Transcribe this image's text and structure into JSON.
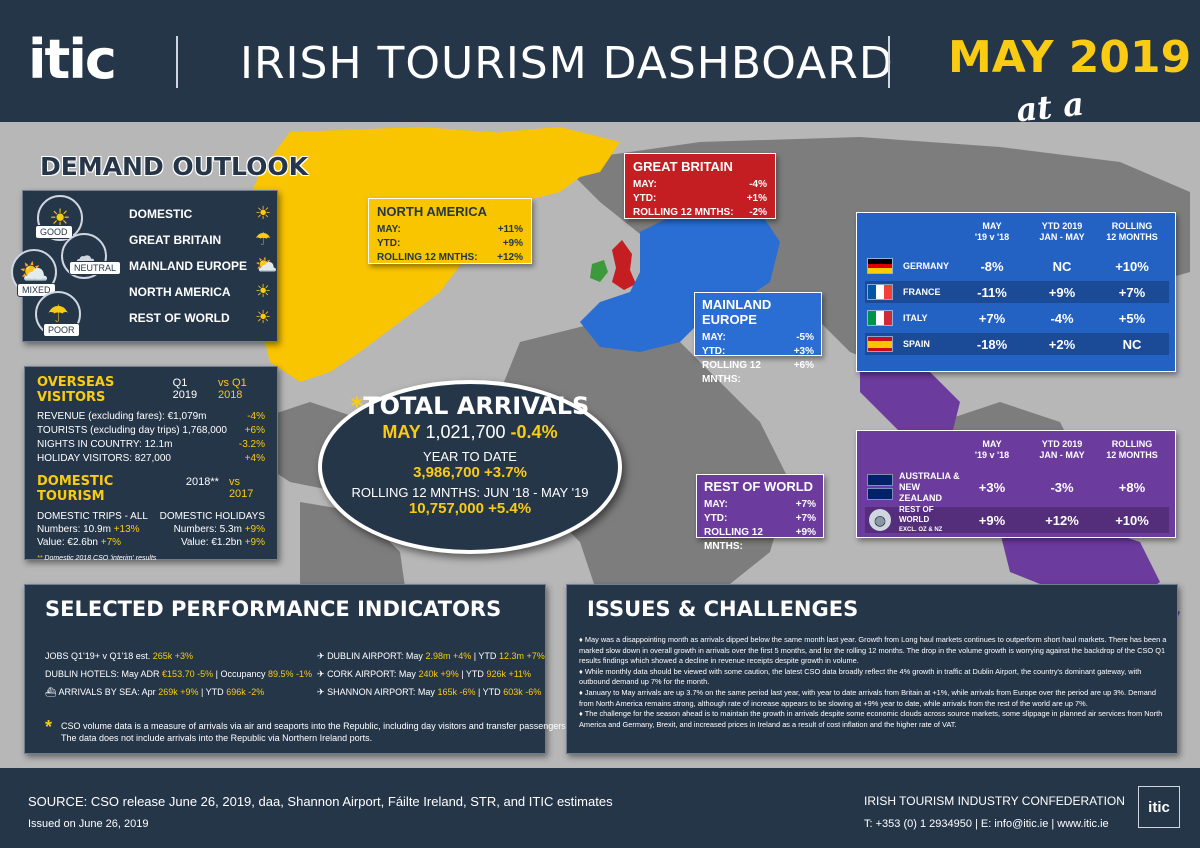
{
  "header": {
    "logo": "itic",
    "title": "IRISH TOURISM DASHBOARD",
    "month": "MAY 2019",
    "tagline": "at a glance!"
  },
  "demand_outlook": {
    "title": "DEMAND OUTLOOK",
    "legend": [
      "GOOD",
      "NEUTRAL",
      "MIXED",
      "POOR"
    ],
    "markets": [
      {
        "name": "DOMESTIC",
        "icon": "sun-icon"
      },
      {
        "name": "GREAT BRITAIN",
        "icon": "cloud-rain-icon"
      },
      {
        "name": "MAINLAND EUROPE",
        "icon": "sun-cloud-icon"
      },
      {
        "name": "NORTH AMERICA",
        "icon": "sun-icon"
      },
      {
        "name": "REST OF WORLD",
        "icon": "sun-icon"
      }
    ]
  },
  "north_america": {
    "title": "NORTH AMERICA",
    "rows": [
      {
        "label": "MAY:",
        "value": "+11%"
      },
      {
        "label": "YTD:",
        "value": "+9%"
      },
      {
        "label": "ROLLING 12 MNTHS:",
        "value": "+12%"
      }
    ]
  },
  "great_britain": {
    "title": "GREAT BRITAIN",
    "rows": [
      {
        "label": "MAY:",
        "value": "-4%"
      },
      {
        "label": "YTD:",
        "value": "+1%"
      },
      {
        "label": "ROLLING 12 MNTHS:",
        "value": "-2%"
      }
    ]
  },
  "mainland_europe": {
    "title": "MAINLAND EUROPE",
    "rows": [
      {
        "label": "MAY:",
        "value": "-5%"
      },
      {
        "label": "YTD:",
        "value": "+3%"
      },
      {
        "label": "ROLLING 12 MNTHS:",
        "value": "+6%"
      }
    ]
  },
  "rest_of_world": {
    "title": "REST OF WORLD",
    "rows": [
      {
        "label": "MAY:",
        "value": "+7%"
      },
      {
        "label": "YTD:",
        "value": "+7%"
      },
      {
        "label": "ROLLING 12 MNTHS:",
        "value": "+9%"
      }
    ]
  },
  "europe_table": {
    "headers": [
      "MAY\n'19 v '18",
      "YTD 2019\nJAN - MAY",
      "ROLLING\n12 MONTHS"
    ],
    "rows": [
      {
        "country": "GERMANY",
        "may": "-8%",
        "ytd": "NC",
        "rolling": "+10%"
      },
      {
        "country": "FRANCE",
        "may": "-11%",
        "ytd": "+9%",
        "rolling": "+7%"
      },
      {
        "country": "ITALY",
        "may": "+7%",
        "ytd": "-4%",
        "rolling": "+5%"
      },
      {
        "country": "SPAIN",
        "may": "-18%",
        "ytd": "+2%",
        "rolling": "NC"
      }
    ]
  },
  "other_table": {
    "headers": [
      "MAY\n'19 v '18",
      "YTD 2019\nJAN - MAY",
      "ROLLING\n12 MONTHS"
    ],
    "rows": [
      {
        "country": "AUSTRALIA & NEW ZEALAND",
        "may": "+3%",
        "ytd": "-3%",
        "rolling": "+8%"
      },
      {
        "country": "REST OF WORLD",
        "sub": "EXCL. OZ & NZ",
        "may": "+9%",
        "ytd": "+12%",
        "rolling": "+10%"
      }
    ]
  },
  "total_arrivals": {
    "title": "TOTAL ARRIVALS",
    "star": "*",
    "may_label": "MAY",
    "may_value": "1,021,700",
    "may_change": "-0.4%",
    "ytd_label": "YEAR TO DATE",
    "ytd_value": "3,986,700 +3.7%",
    "rolling_label": "ROLLING 12 MNTHS: JUN '18 - MAY '19",
    "rolling_value": "10,757,000 +5.4%"
  },
  "overseas_visitors": {
    "title": "OVERSEAS VISITORS",
    "period": "Q1 2019",
    "compare": "vs Q1 2018",
    "rows": [
      {
        "label": "REVENUE (excluding fares): €1,079m",
        "value": "-4%"
      },
      {
        "label": "TOURISTS (excluding day trips) 1,768,000",
        "value": "+6%"
      },
      {
        "label": "NIGHTS IN COUNTRY: 12.1m",
        "value": "-3.2%"
      },
      {
        "label": "HOLIDAY VISITORS: 827,000",
        "value": "+4%"
      }
    ]
  },
  "domestic_tourism": {
    "title": "DOMESTIC TOURISM",
    "period": "2018**",
    "compare": "vs 2017",
    "col1": {
      "heading": "DOMESTIC TRIPS - ALL",
      "numbers": "Numbers: 10.9m",
      "numbers_change": "+13%",
      "value": "Value: €2.6bn",
      "value_change": "+7%"
    },
    "col2": {
      "heading": "DOMESTIC HOLIDAYS",
      "numbers": "Numbers: 5.3m",
      "numbers_change": "+9%",
      "value": "Value: €1.2bn",
      "value_change": "+9%"
    },
    "note": "Domestic 2018 CSO 'interim' results",
    "note_mark": "**"
  },
  "performance": {
    "title": "SELECTED PERFORMANCE INDICATORS",
    "jobs": "JOBS Q1'19+ v Q1'18 est.",
    "jobs_value": "265k +3%",
    "hotels": "DUBLIN HOTELS: May ADR",
    "hotels_adr": "€153.70 -5%",
    "hotels_occ_label": "| Occupancy",
    "hotels_occ": "89.5% -1%",
    "sea": "ARRIVALS BY SEA: Apr",
    "sea_value": "269k +9%",
    "sea_ytd_label": "| YTD",
    "sea_ytd": "696k -2%",
    "dublin": "DUBLIN AIRPORT: May",
    "dublin_value": "2.98m +4%",
    "dublin_ytd_label": "| YTD",
    "dublin_ytd": "12.3m +7%",
    "cork": "CORK AIRPORT: May",
    "cork_value": "240k +9%",
    "cork_ytd_label": "| YTD",
    "cork_ytd": "926k +11%",
    "shannon": "SHANNON AIRPORT: May",
    "shannon_value": "165k -6%",
    "shannon_ytd_label": "| YTD",
    "shannon_ytd": "603k -6%",
    "footnote": "CSO volume data is a measure of arrivals via air and seaports into the Republic, including day visitors and transfer passengers.",
    "footnote2": "The data does not include arrivals into the Republic via Northern Ireland ports."
  },
  "issues": {
    "title": "ISSUES & CHALLENGES",
    "bullets": [
      "May was a disappointing month as arrivals dipped below the same month last year. Growth from Long haul markets continues to outperform short haul markets. There has been a marked slow down in overall growth in arrivals over the first 5 months, and for the rolling 12 months. The drop in the volume growth is worrying against the backdrop of the CSO Q1 results findings which showed a decline in revenue receipts despite growth in volume.",
      "While monthly data should be viewed with some caution, the latest CSO data broadly reflect the 4% growth in traffic at Dublin Airport, the country's dominant gateway, with outbound demand up 7% for the month.",
      "January to May arrivals are up 3.7% on the same period last year, with year to date arrivals from Britain at +1%, while arrivals from Europe over the period are up 3%. Demand from North America  remains strong, although rate of increase appears to be slowing at +9% year to date, while arrivals from the rest of the world are up 7%.",
      "The challenge for the season ahead is to maintain the growth in arrivals despite some economic clouds across source markets, some slippage in planned air services from North America and Germany, Brexit, and increased prices in Ireland as a result of cost inflation and the higher rate of VAT."
    ]
  },
  "footer": {
    "source": "SOURCE: CSO release June 26, 2019, daa, Shannon Airport, Fáilte Ireland, STR, and ITIC estimates",
    "issued": "Issued on June 26, 2019",
    "org": "IRISH TOURISM INDUSTRY CONFEDERATION",
    "contact": "T: +353 (0) 1 2934950 | E: info@itic.ie | www.itic.ie",
    "logo": "itic"
  },
  "colors": {
    "navy": "#263649",
    "yellow": "#f9c400",
    "red": "#c41d22",
    "blue": "#2a6ed3",
    "purple": "#6c3b9e",
    "green": "#3c9a3c"
  }
}
